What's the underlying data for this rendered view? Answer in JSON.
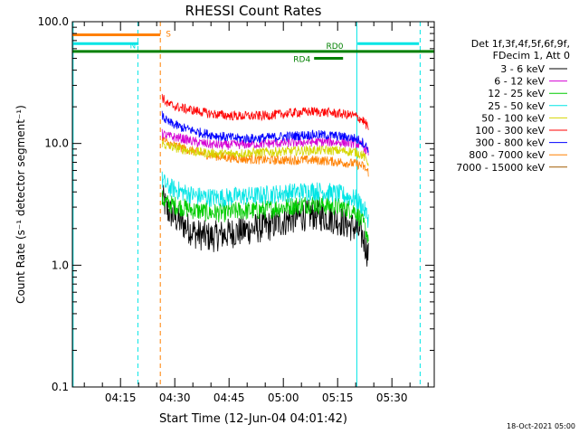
{
  "chart_data": {
    "type": "line",
    "title": "RHESSI Count Rates",
    "xlabel": "Start Time (12-Jun-04 04:01:42)",
    "ylabel": "Count Rate (s⁻¹ detector segment⁻¹)",
    "yscale": "log",
    "ylim": [
      0.1,
      100
    ],
    "xlim_minutes_after_0400": [
      1.7,
      101.7
    ],
    "x_ticks": [
      {
        "label": "04:15",
        "minute": 15
      },
      {
        "label": "04:30",
        "minute": 30
      },
      {
        "label": "04:45",
        "minute": 45
      },
      {
        "label": "05:00",
        "minute": 60
      },
      {
        "label": "05:15",
        "minute": 75
      },
      {
        "label": "05:30",
        "minute": 90
      }
    ],
    "y_ticks": [
      {
        "label": "0.1",
        "value": 0.1
      },
      {
        "label": "1.0",
        "value": 1
      },
      {
        "label": "10.0",
        "value": 10
      },
      {
        "label": "100.0",
        "value": 100
      }
    ],
    "legend_header": [
      "Det 1f,3f,4f,5f,6f,9f,",
      "FDecim 1, Att 0"
    ],
    "legend_position": "right",
    "footer": "18-Oct-2021 05:00",
    "series": [
      {
        "name": "3 - 6 keV",
        "color": "#000000",
        "x": [
          26.5,
          28,
          32,
          36,
          40,
          44,
          48,
          52,
          56,
          60,
          64,
          68,
          72,
          76,
          80,
          82,
          83.5
        ],
        "y": [
          3.6,
          2.8,
          2.2,
          1.8,
          1.7,
          1.8,
          1.9,
          2.0,
          2.1,
          2.3,
          2.5,
          2.6,
          2.5,
          2.3,
          2.0,
          1.7,
          1.2
        ]
      },
      {
        "name": "6 - 12 keV",
        "color": "#d400d4",
        "x": [
          26.5,
          28,
          32,
          36,
          40,
          44,
          48,
          52,
          56,
          60,
          64,
          68,
          72,
          76,
          80,
          82,
          83.5
        ],
        "y": [
          12.0,
          11.5,
          11.0,
          10.2,
          9.8,
          9.7,
          9.8,
          9.9,
          10.0,
          10.1,
          10.2,
          10.3,
          10.3,
          10.2,
          10.0,
          9.5,
          8.5
        ]
      },
      {
        "name": "12 - 25 keV",
        "color": "#00cc00",
        "x": [
          26.5,
          28,
          32,
          36,
          40,
          44,
          48,
          52,
          56,
          60,
          64,
          68,
          72,
          76,
          80,
          82,
          83.5
        ],
        "y": [
          3.5,
          3.2,
          3.0,
          2.8,
          2.7,
          2.7,
          2.8,
          2.8,
          2.9,
          3.0,
          3.1,
          3.2,
          3.1,
          3.0,
          2.8,
          2.2,
          1.7
        ]
      },
      {
        "name": "25 - 50 keV",
        "color": "#00e5e5",
        "x": [
          26.5,
          28,
          32,
          36,
          40,
          44,
          48,
          52,
          56,
          60,
          64,
          68,
          72,
          76,
          80,
          82,
          83.5
        ],
        "y": [
          5.0,
          4.4,
          4.0,
          3.7,
          3.6,
          3.6,
          3.7,
          3.7,
          3.8,
          3.9,
          4.0,
          4.1,
          4.0,
          3.8,
          3.5,
          3.0,
          2.4
        ]
      },
      {
        "name": "50 - 100 keV",
        "color": "#d6d600",
        "x": [
          26.5,
          28,
          32,
          36,
          40,
          44,
          48,
          52,
          56,
          60,
          64,
          68,
          72,
          76,
          80,
          82,
          83.5
        ],
        "y": [
          10.0,
          9.5,
          9.0,
          8.5,
          8.3,
          8.2,
          8.3,
          8.4,
          8.5,
          8.6,
          8.7,
          8.8,
          8.8,
          8.7,
          8.5,
          8.0,
          7.0
        ]
      },
      {
        "name": "100 - 300 keV",
        "color": "#ff0000",
        "x": [
          26.5,
          28,
          32,
          36,
          40,
          44,
          48,
          52,
          56,
          60,
          64,
          68,
          72,
          76,
          80,
          82,
          83.5
        ],
        "y": [
          24.0,
          21.0,
          19.5,
          18.5,
          17.5,
          17.0,
          16.8,
          16.8,
          17.0,
          17.5,
          18.0,
          18.3,
          18.0,
          17.5,
          16.8,
          15.5,
          13.5
        ]
      },
      {
        "name": "300 - 800 keV",
        "color": "#0000ff",
        "x": [
          26.5,
          28,
          32,
          36,
          40,
          44,
          48,
          52,
          56,
          60,
          64,
          68,
          72,
          76,
          80,
          82,
          83.5
        ],
        "y": [
          17.0,
          15.0,
          13.5,
          12.5,
          11.8,
          11.3,
          11.0,
          11.0,
          11.2,
          11.4,
          11.6,
          11.8,
          11.7,
          11.4,
          11.0,
          10.2,
          9.0
        ]
      },
      {
        "name": "800 - 7000 keV",
        "color": "#ff8000",
        "x": [
          26.5,
          28,
          32,
          36,
          40,
          44,
          48,
          52,
          56,
          60,
          64,
          68,
          72,
          76,
          80,
          82,
          83.5
        ],
        "y": [
          11.0,
          10.0,
          9.2,
          8.5,
          8.0,
          7.7,
          7.5,
          7.4,
          7.3,
          7.3,
          7.3,
          7.3,
          7.2,
          7.0,
          6.8,
          6.5,
          5.8
        ]
      },
      {
        "name": "7000 - 15000 keV",
        "color": "#a05a00",
        "x": [],
        "y": []
      }
    ],
    "top_bars": [
      {
        "label": "S",
        "color": "#ff8000",
        "x_start": 1.7,
        "x_end": 26,
        "y": 78
      },
      {
        "label": "N",
        "color": "#00e5e5",
        "x_start": 1.7,
        "x_end": 20,
        "y": 66
      },
      {
        "label": "",
        "color": "#00e5e5",
        "x_start": 80.5,
        "x_end": 97.5,
        "y": 66
      },
      {
        "label": "RD0",
        "color": "#008000",
        "x_start": 1.7,
        "x_end": 101.7,
        "y": 57
      },
      {
        "label": "RD4",
        "color": "#008000",
        "x_start": 68.5,
        "x_end": 76.5,
        "y": 50
      }
    ],
    "vertical_lines": [
      {
        "x": 1.9,
        "color": "#00e5e5",
        "style": "solid"
      },
      {
        "x": 19.8,
        "color": "#00e5e5",
        "style": "dashed"
      },
      {
        "x": 26.0,
        "color": "#ff8000",
        "style": "dashed"
      },
      {
        "x": 80.3,
        "color": "#00e5e5",
        "style": "solid"
      },
      {
        "x": 97.8,
        "color": "#00e5e5",
        "style": "dashed"
      }
    ]
  }
}
